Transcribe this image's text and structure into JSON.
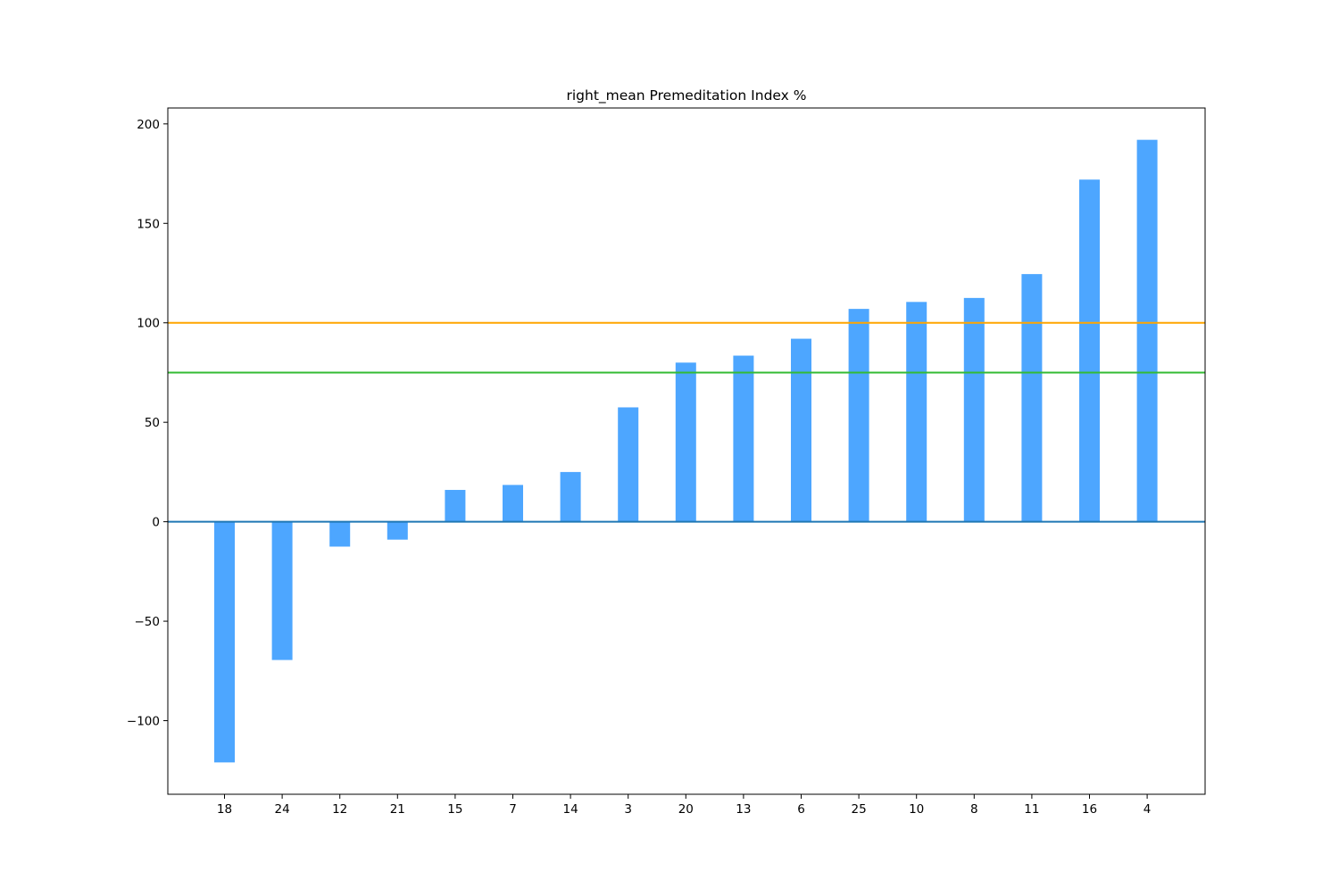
{
  "chart_data": {
    "type": "bar",
    "title": "right_mean Premeditation Index %",
    "xlabel": "",
    "ylabel": "",
    "categories": [
      "18",
      "24",
      "12",
      "21",
      "15",
      "7",
      "14",
      "3",
      "20",
      "13",
      "6",
      "25",
      "10",
      "8",
      "11",
      "16",
      "4"
    ],
    "values": [
      -121,
      -69.5,
      -12.5,
      -9,
      16,
      18.5,
      25,
      57.5,
      80,
      83.5,
      92,
      107,
      110.5,
      112.5,
      124.5,
      172,
      192
    ],
    "ylim": [
      -137,
      208
    ],
    "yticks": [
      -100,
      -50,
      0,
      50,
      100,
      150,
      200
    ],
    "ytick_labels": [
      "−100",
      "−50",
      "0",
      "50",
      "100",
      "150",
      "200"
    ],
    "reference_lines": [
      {
        "value": 100,
        "color": "#FFA500"
      },
      {
        "value": 75,
        "color": "#33BB33"
      },
      {
        "value": 0,
        "color": "#1F77B4"
      }
    ],
    "bar_color": "#4DA6FF",
    "grid": false,
    "legend": "none"
  }
}
